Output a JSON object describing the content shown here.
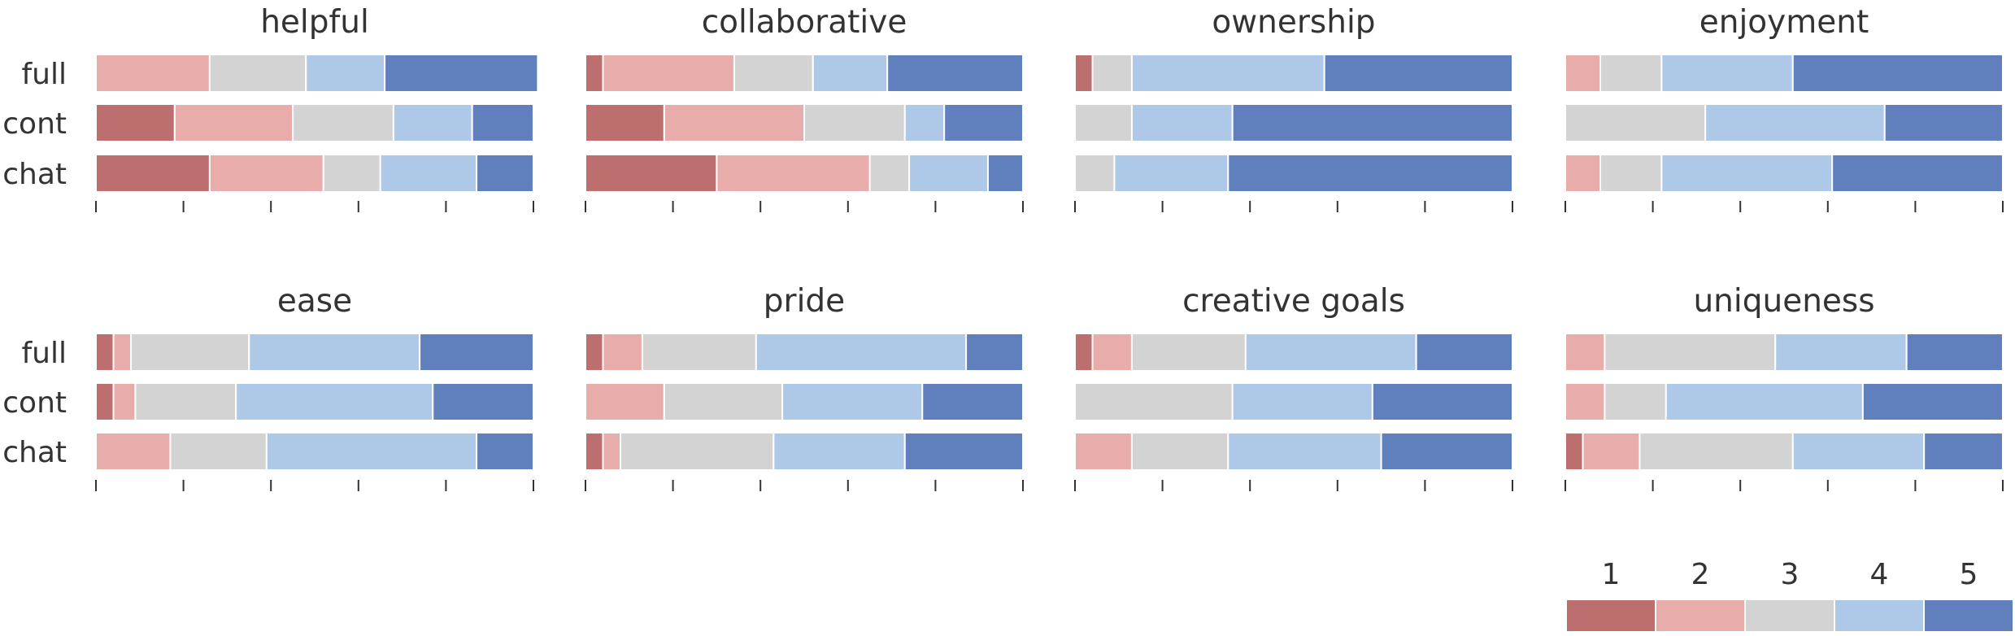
{
  "chart_data": {
    "type": "bar",
    "orientation": "horizontal",
    "stacked": "normalized",
    "conditions": [
      "full",
      "cont",
      "chat"
    ],
    "levels": [
      "1",
      "2",
      "3",
      "4",
      "5"
    ],
    "colors": [
      "#bd6f6f",
      "#e8adab",
      "#d3d3d3",
      "#aec8e8",
      "#5f7fbd"
    ],
    "xlim": [
      0,
      1
    ],
    "xtick_labels": "none",
    "grid": false,
    "legend_position": "bottom-right",
    "panels": [
      {
        "title": "helpful",
        "rows": [
          {
            "condition": "full",
            "values": [
              0.0,
              0.26,
              0.22,
              0.18,
              0.35
            ]
          },
          {
            "condition": "cont",
            "values": [
              0.18,
              0.27,
              0.23,
              0.18,
              0.14
            ]
          },
          {
            "condition": "chat",
            "values": [
              0.26,
              0.26,
              0.13,
              0.22,
              0.13
            ]
          }
        ]
      },
      {
        "title": "collaborative",
        "rows": [
          {
            "condition": "full",
            "values": [
              0.04,
              0.3,
              0.18,
              0.17,
              0.31
            ]
          },
          {
            "condition": "cont",
            "values": [
              0.18,
              0.32,
              0.23,
              0.09,
              0.18
            ]
          },
          {
            "condition": "chat",
            "values": [
              0.3,
              0.35,
              0.09,
              0.18,
              0.08
            ]
          }
        ]
      },
      {
        "title": "ownership",
        "rows": [
          {
            "condition": "full",
            "values": [
              0.04,
              0.0,
              0.09,
              0.44,
              0.43
            ]
          },
          {
            "condition": "cont",
            "values": [
              0.0,
              0.0,
              0.13,
              0.23,
              0.64
            ]
          },
          {
            "condition": "chat",
            "values": [
              0.0,
              0.0,
              0.09,
              0.26,
              0.65
            ]
          }
        ]
      },
      {
        "title": "enjoyment",
        "rows": [
          {
            "condition": "full",
            "values": [
              0.0,
              0.08,
              0.14,
              0.3,
              0.48
            ]
          },
          {
            "condition": "cont",
            "values": [
              0.0,
              0.0,
              0.32,
              0.41,
              0.27
            ]
          },
          {
            "condition": "chat",
            "values": [
              0.0,
              0.08,
              0.14,
              0.39,
              0.39
            ]
          }
        ]
      },
      {
        "title": "ease",
        "rows": [
          {
            "condition": "full",
            "values": [
              0.04,
              0.04,
              0.27,
              0.39,
              0.26
            ]
          },
          {
            "condition": "cont",
            "values": [
              0.04,
              0.05,
              0.23,
              0.45,
              0.23
            ]
          },
          {
            "condition": "chat",
            "values": [
              0.0,
              0.17,
              0.22,
              0.48,
              0.13
            ]
          }
        ]
      },
      {
        "title": "pride",
        "rows": [
          {
            "condition": "full",
            "values": [
              0.04,
              0.09,
              0.26,
              0.48,
              0.13
            ]
          },
          {
            "condition": "cont",
            "values": [
              0.0,
              0.18,
              0.27,
              0.32,
              0.23
            ]
          },
          {
            "condition": "chat",
            "values": [
              0.04,
              0.04,
              0.35,
              0.3,
              0.27
            ]
          }
        ]
      },
      {
        "title": "creative goals",
        "rows": [
          {
            "condition": "full",
            "values": [
              0.04,
              0.09,
              0.26,
              0.39,
              0.22
            ]
          },
          {
            "condition": "cont",
            "values": [
              0.0,
              0.0,
              0.36,
              0.32,
              0.32
            ]
          },
          {
            "condition": "chat",
            "values": [
              0.0,
              0.13,
              0.22,
              0.35,
              0.3
            ]
          }
        ]
      },
      {
        "title": "uniqueness",
        "rows": [
          {
            "condition": "full",
            "values": [
              0.0,
              0.09,
              0.39,
              0.3,
              0.22
            ]
          },
          {
            "condition": "cont",
            "values": [
              0.0,
              0.09,
              0.14,
              0.45,
              0.32
            ]
          },
          {
            "condition": "chat",
            "values": [
              0.04,
              0.13,
              0.35,
              0.3,
              0.18
            ]
          }
        ]
      }
    ]
  }
}
